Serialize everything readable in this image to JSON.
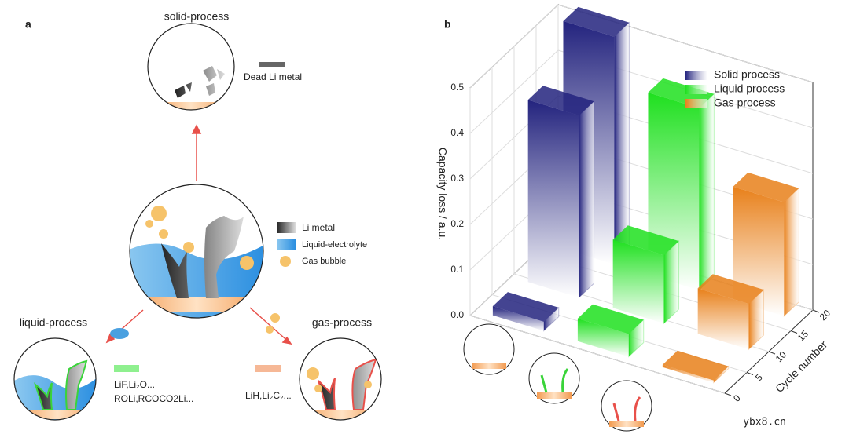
{
  "panel_a": {
    "label": "a",
    "solid_title": "solid-process",
    "dead_li": "Dead Li metal",
    "legend": [
      "Li metal",
      "Liquid-electrolyte",
      "Gas bubble"
    ],
    "liquid_title": "liquid-process",
    "liquid_sei": [
      "LiF,Li₂O...",
      "ROLi,RCOCO2Li..."
    ],
    "gas_title": "gas-process",
    "gas_sei": "LiH,Li₂C₂..."
  },
  "chart_data": {
    "type": "bar3d",
    "label": "b",
    "zlabel": "Capacity loss / a.u.",
    "ylabel": "Cycle number",
    "cycles": [
      3,
      11,
      19
    ],
    "series": [
      {
        "name": "Solid process",
        "color": "#23237e",
        "values": [
          0.02,
          0.4,
          0.5
        ]
      },
      {
        "name": "Liquid process",
        "color": "#1ee01e",
        "values": [
          0.05,
          0.15,
          0.4
        ]
      },
      {
        "name": "Gas process",
        "color": "#e8801a",
        "values": [
          0.005,
          0.1,
          0.25
        ]
      }
    ],
    "zlim": [
      0,
      0.5
    ],
    "zticks": [
      {
        "value": 0,
        "label": "0.0"
      },
      0.1,
      0.2,
      0.3,
      0.4,
      0.5
    ],
    "ylim": [
      0,
      20
    ],
    "yticks": [
      0,
      5,
      10,
      15,
      20
    ],
    "grid": true,
    "legend": "upper right"
  },
  "watermark": "ybx8.cn"
}
